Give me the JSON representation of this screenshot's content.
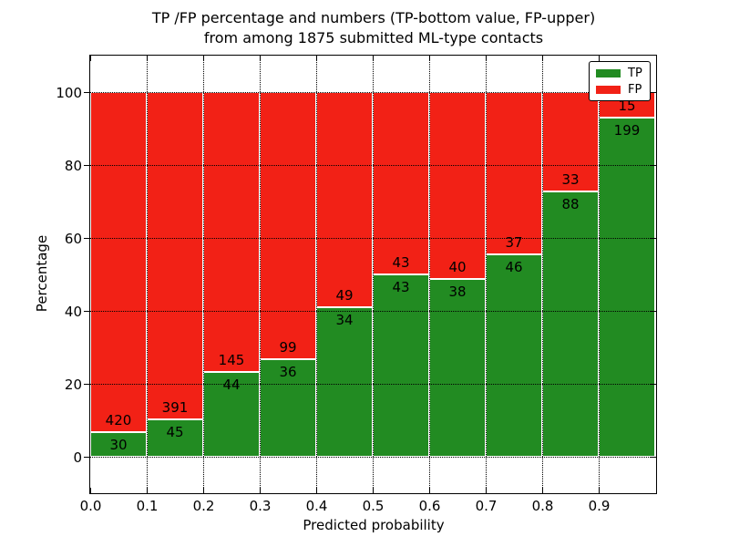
{
  "figure": {
    "title_lines": [
      "TP /FP percentage and numbers (TP-bottom value, FP-upper)",
      "from among 1875 submitted ML-type contacts"
    ]
  },
  "chart_data": {
    "type": "bar",
    "stacked": true,
    "normalized": "percentage",
    "title_lines": [
      "TP /FP percentage and numbers (TP-bottom value, FP-upper)",
      "from among 1875 submitted ML-type contacts"
    ],
    "xlabel": "Predicted probability",
    "ylabel": "Percentage",
    "total_contacts": 1875,
    "xlim": [
      0.0,
      1.0
    ],
    "ylim": [
      -10,
      110
    ],
    "x_tick_labels": [
      "0.0",
      "0.1",
      "0.2",
      "0.3",
      "0.4",
      "0.5",
      "0.6",
      "0.7",
      "0.8",
      "0.9"
    ],
    "y_tick_values": [
      0,
      20,
      40,
      60,
      80,
      100
    ],
    "grid": "dotted",
    "legend_position": "upper right",
    "bins": [
      {
        "range": "0.0-0.1",
        "tp": 30,
        "fp": 420
      },
      {
        "range": "0.1-0.2",
        "tp": 45,
        "fp": 391
      },
      {
        "range": "0.2-0.3",
        "tp": 44,
        "fp": 145
      },
      {
        "range": "0.3-0.4",
        "tp": 36,
        "fp": 99
      },
      {
        "range": "0.4-0.5",
        "tp": 34,
        "fp": 49
      },
      {
        "range": "0.5-0.6",
        "tp": 43,
        "fp": 43
      },
      {
        "range": "0.6-0.7",
        "tp": 38,
        "fp": 40
      },
      {
        "range": "0.7-0.8",
        "tp": 46,
        "fp": 37
      },
      {
        "range": "0.8-0.9",
        "tp": 88,
        "fp": 33
      },
      {
        "range": "0.9-1.0",
        "tp": 199,
        "fp": 15
      }
    ],
    "legend": [
      {
        "label": "TP",
        "color": "#228b22"
      },
      {
        "label": "FP",
        "color": "#f22116"
      }
    ]
  }
}
